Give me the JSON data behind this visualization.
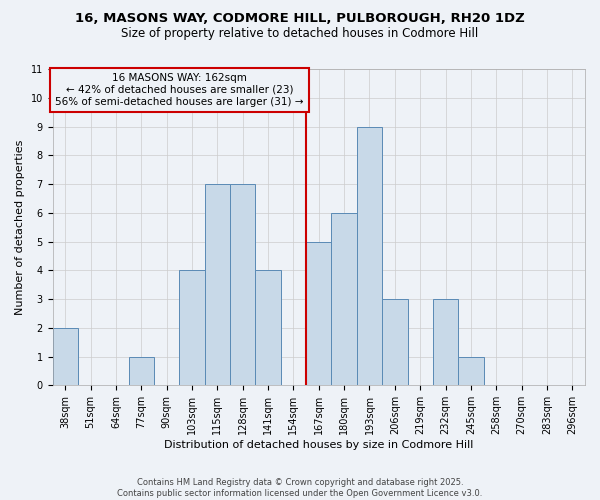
{
  "title_line1": "16, MASONS WAY, CODMORE HILL, PULBOROUGH, RH20 1DZ",
  "title_line2": "Size of property relative to detached houses in Codmore Hill",
  "xlabel": "Distribution of detached houses by size in Codmore Hill",
  "ylabel": "Number of detached properties",
  "categories": [
    "38sqm",
    "51sqm",
    "64sqm",
    "77sqm",
    "90sqm",
    "103sqm",
    "115sqm",
    "128sqm",
    "141sqm",
    "154sqm",
    "167sqm",
    "180sqm",
    "193sqm",
    "206sqm",
    "219sqm",
    "232sqm",
    "245sqm",
    "258sqm",
    "270sqm",
    "283sqm",
    "296sqm"
  ],
  "values": [
    2,
    0,
    0,
    1,
    0,
    4,
    7,
    7,
    4,
    0,
    5,
    6,
    9,
    3,
    0,
    3,
    1,
    0,
    0,
    0,
    0
  ],
  "bar_color": "#c8d9e8",
  "bar_edge_color": "#5a8ab5",
  "reference_line_color": "#cc0000",
  "annotation_text": "16 MASONS WAY: 162sqm\n← 42% of detached houses are smaller (23)\n56% of semi-detached houses are larger (31) →",
  "annotation_box_edge_color": "#cc0000",
  "ylim": [
    0,
    11
  ],
  "yticks": [
    0,
    1,
    2,
    3,
    4,
    5,
    6,
    7,
    8,
    9,
    10,
    11
  ],
  "grid_color": "#cccccc",
  "background_color": "#eef2f7",
  "footer_text": "Contains HM Land Registry data © Crown copyright and database right 2025.\nContains public sector information licensed under the Open Government Licence v3.0.",
  "title1_fontsize": 9.5,
  "title2_fontsize": 8.5,
  "axis_label_fontsize": 8,
  "tick_fontsize": 7,
  "annotation_fontsize": 7.5,
  "footer_fontsize": 6,
  "ref_bar_index": 10
}
